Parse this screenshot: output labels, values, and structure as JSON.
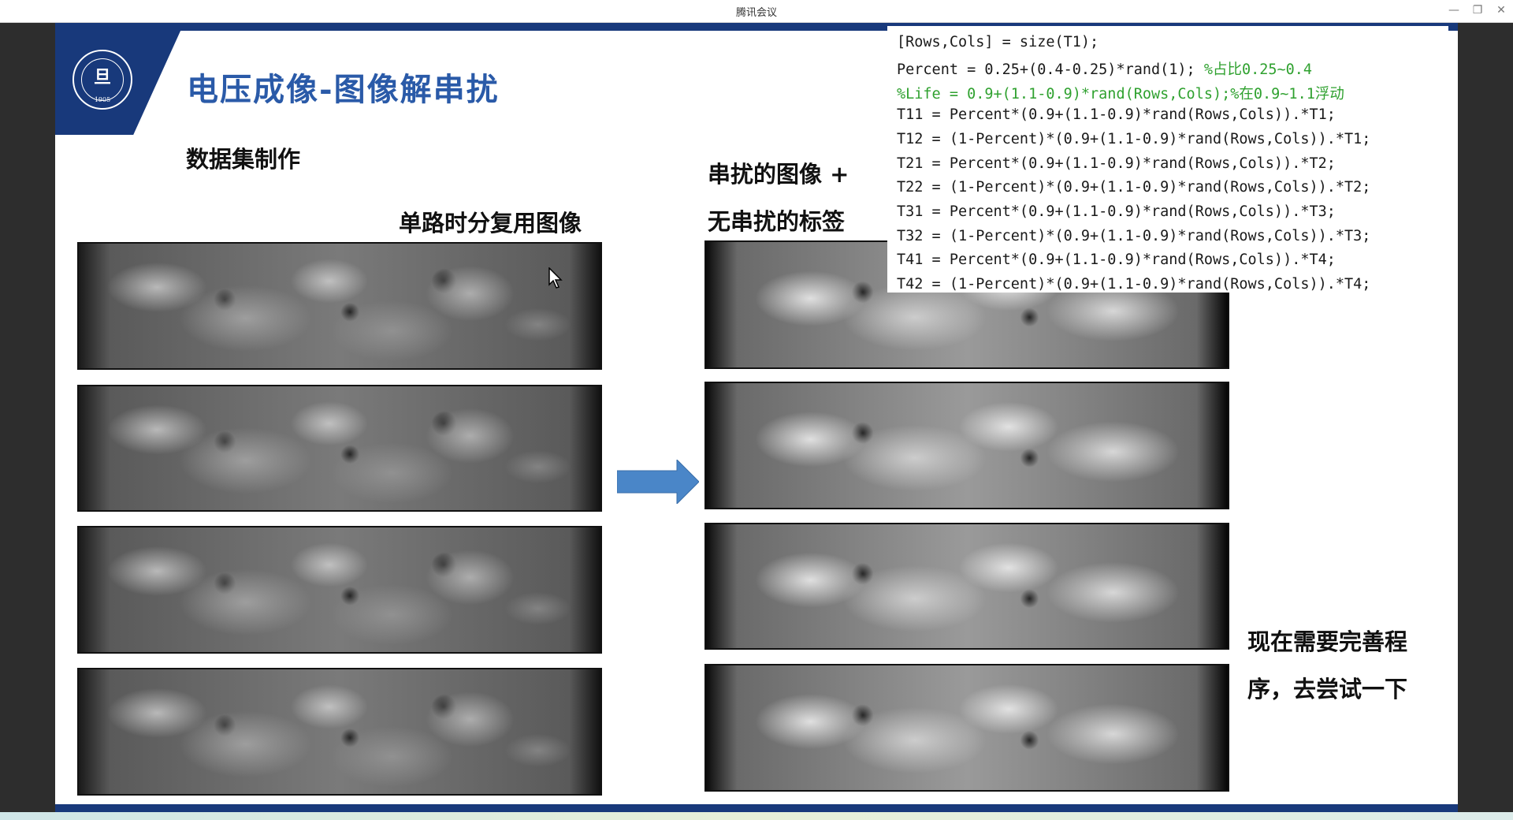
{
  "window": {
    "title": "腾讯会议",
    "minimize_glyph": "—",
    "maximize_glyph": "❐",
    "close_glyph": "✕"
  },
  "slide": {
    "logo": {
      "glyph": "旦",
      "year": "1905"
    },
    "title": "电压成像-图像解串扰",
    "subtitle": "数据集制作",
    "label_left": "单路时分复用图像",
    "label_right_line1": "串扰的图像 +",
    "label_right_line2": "无串扰的标签",
    "note_line1": "现在需要完善程",
    "note_line2": "序，去尝试一下",
    "code": {
      "line1": "[Rows,Cols] = size(T1);",
      "line2_code": "Percent = 0.25+(0.4-0.25)*rand(1); ",
      "line2_comment": "%占比0.25~0.4",
      "line3_comment": "%Life = 0.9+(1.1-0.9)*rand(Rows,Cols);%在0.9~1.1浮动",
      "line4": "T11 = Percent*(0.9+(1.1-0.9)*rand(Rows,Cols)).*T1;",
      "line5": "T12 = (1-Percent)*(0.9+(1.1-0.9)*rand(Rows,Cols)).*T1;",
      "line6": "T21 = Percent*(0.9+(1.1-0.9)*rand(Rows,Cols)).*T2;",
      "line7": "T22 = (1-Percent)*(0.9+(1.1-0.9)*rand(Rows,Cols)).*T2;",
      "line8": "T31 = Percent*(0.9+(1.1-0.9)*rand(Rows,Cols)).*T3;",
      "line9": "T32 = (1-Percent)*(0.9+(1.1-0.9)*rand(Rows,Cols)).*T3;",
      "line10": "T41 = Percent*(0.9+(1.1-0.9)*rand(Rows,Cols)).*T4;",
      "line11": "T42 = (1-Percent)*(0.9+(1.1-0.9)*rand(Rows,Cols)).*T4;"
    }
  },
  "colors": {
    "slide_accent": "#18397b",
    "title_blue": "#2a5aa8",
    "arrow_fill": "#4a86c8",
    "code_comment": "#2fa12f"
  }
}
